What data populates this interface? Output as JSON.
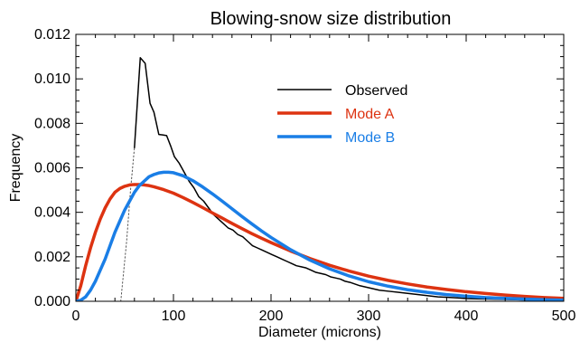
{
  "chart_data": {
    "type": "line",
    "title": "Blowing-snow size distribution",
    "xlabel": "Diameter (microns)",
    "ylabel": "Frequency",
    "xlim": [
      0,
      500
    ],
    "ylim": [
      0,
      0.012
    ],
    "xticks": [
      0,
      100,
      200,
      300,
      400,
      500
    ],
    "xtick_labels": [
      "0",
      "100",
      "200",
      "300",
      "400",
      "500"
    ],
    "yticks": [
      0,
      0.002,
      0.004,
      0.006,
      0.008,
      0.01,
      0.012
    ],
    "ytick_labels": [
      "0.000",
      "0.002",
      "0.004",
      "0.006",
      "0.008",
      "0.010",
      "0.012"
    ],
    "grid": false,
    "legend_position": "upper-center-right",
    "series": [
      {
        "name": "Observed",
        "color": "#000000",
        "style": "solid",
        "x": [
          60,
          66,
          71,
          76,
          80,
          85,
          89,
          93,
          97,
          101,
          106,
          111,
          116,
          121,
          126,
          131,
          136,
          141,
          146,
          151,
          156,
          161,
          166,
          171,
          176,
          181,
          186,
          191,
          196,
          201,
          206,
          211,
          216,
          221,
          226,
          231,
          236,
          241,
          246,
          251,
          256,
          261,
          266,
          271,
          276,
          281,
          291,
          301,
          311,
          321,
          331,
          341,
          351,
          361,
          371,
          381,
          391,
          401,
          421,
          441,
          461,
          481,
          500
        ],
        "y": [
          0.0069,
          0.01095,
          0.0107,
          0.0089,
          0.0085,
          0.0075,
          0.00748,
          0.00745,
          0.007,
          0.0065,
          0.0062,
          0.0058,
          0.0054,
          0.0051,
          0.0047,
          0.0045,
          0.0042,
          0.0039,
          0.0037,
          0.0035,
          0.0033,
          0.0032,
          0.003,
          0.0029,
          0.0027,
          0.0025,
          0.0024,
          0.0023,
          0.0022,
          0.0021,
          0.002,
          0.0019,
          0.0018,
          0.0017,
          0.0016,
          0.00155,
          0.0015,
          0.0014,
          0.0013,
          0.00125,
          0.0012,
          0.0011,
          0.00105,
          0.001,
          0.0009,
          0.00085,
          0.0007,
          0.0006,
          0.0005,
          0.00045,
          0.0004,
          0.00035,
          0.0003,
          0.00025,
          0.0002,
          0.00018,
          0.00015,
          0.00012,
          0.0001,
          8e-05,
          6e-05,
          4e-05,
          3e-05
        ]
      },
      {
        "name": "",
        "color": "#555555",
        "style": "dotted",
        "x": [
          46,
          52,
          56,
          60
        ],
        "y": [
          0.0,
          0.0027,
          0.005,
          0.0069
        ]
      },
      {
        "name": "Mode A",
        "color": "#dd3311",
        "style": "solid",
        "x": [
          0,
          5,
          10,
          15,
          20,
          25,
          30,
          35,
          40,
          45,
          50,
          55,
          60,
          65,
          70,
          75,
          80,
          90,
          100,
          110,
          120,
          130,
          140,
          150,
          160,
          170,
          180,
          190,
          200,
          220,
          240,
          260,
          280,
          300,
          320,
          340,
          360,
          380,
          400,
          420,
          440,
          460,
          480,
          500
        ],
        "y": [
          0.0,
          0.0007,
          0.0016,
          0.0024,
          0.0031,
          0.0037,
          0.0042,
          0.0046,
          0.0049,
          0.00507,
          0.00517,
          0.00523,
          0.00525,
          0.00525,
          0.00523,
          0.0052,
          0.00515,
          0.00502,
          0.00486,
          0.00466,
          0.00444,
          0.00421,
          0.00397,
          0.00374,
          0.0035,
          0.00327,
          0.00305,
          0.00284,
          0.00264,
          0.00226,
          0.00192,
          0.00162,
          0.00136,
          0.00113,
          0.00094,
          0.00078,
          0.00064,
          0.00053,
          0.00043,
          0.00035,
          0.00028,
          0.00022,
          0.00017,
          0.00013
        ]
      },
      {
        "name": "Mode B",
        "color": "#1a7ee6",
        "style": "solid",
        "x": [
          0,
          5,
          10,
          15,
          20,
          25,
          30,
          35,
          40,
          45,
          50,
          55,
          60,
          65,
          70,
          75,
          80,
          85,
          90,
          95,
          100,
          110,
          120,
          130,
          140,
          150,
          160,
          170,
          180,
          190,
          200,
          220,
          240,
          260,
          280,
          300,
          320,
          340,
          360,
          380,
          400,
          420,
          440,
          460,
          480,
          500
        ],
        "y": [
          0.0,
          5e-05,
          0.0002,
          0.0005,
          0.0009,
          0.0014,
          0.0019,
          0.0025,
          0.0031,
          0.0036,
          0.0041,
          0.0045,
          0.0049,
          0.0052,
          0.0054,
          0.0056,
          0.0057,
          0.00577,
          0.0058,
          0.0058,
          0.00578,
          0.00564,
          0.00542,
          0.00514,
          0.00483,
          0.0045,
          0.00416,
          0.00382,
          0.00349,
          0.00317,
          0.00287,
          0.00232,
          0.00185,
          0.00146,
          0.00114,
          0.00088,
          0.00068,
          0.00052,
          0.0004,
          0.0003,
          0.00023,
          0.00017,
          0.00013,
          0.0001,
          7e-05,
          5e-05
        ]
      }
    ],
    "legend": [
      {
        "label": "Observed",
        "color": "#000000"
      },
      {
        "label": "Mode A",
        "color": "#dd3311"
      },
      {
        "label": "Mode B",
        "color": "#1a7ee6"
      }
    ]
  }
}
